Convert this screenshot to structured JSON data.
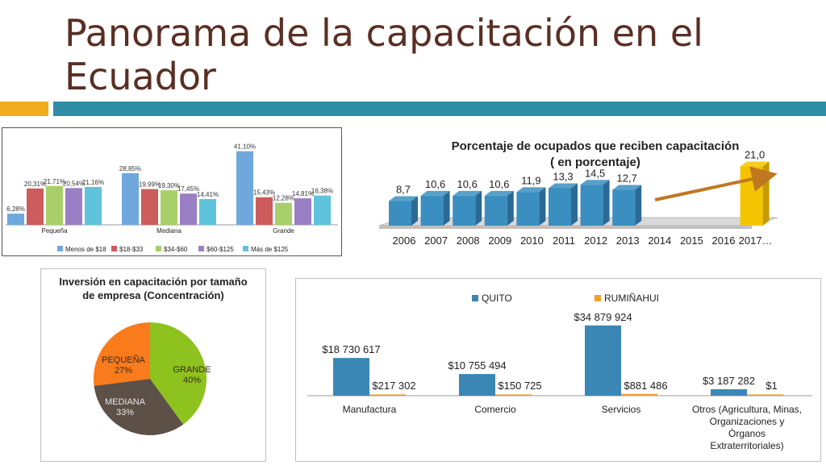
{
  "slide": {
    "title": "Panorama de la capacitación en el Ecuador",
    "accent_orange": "#f0ac1d",
    "accent_teal": "#2e8ca5",
    "title_color": "#5a2f23"
  },
  "chart_data": [
    {
      "type": "bar",
      "categories": [
        "Pequeña",
        "Mediana",
        "Grande"
      ],
      "series": [
        {
          "name": "Menos de $18",
          "values": [
            6.28,
            28.85,
            41.1
          ],
          "labels": [
            "6,28%",
            "28,85%",
            "41,10%"
          ],
          "color": "#6fa8dc"
        },
        {
          "name": "$18-$33",
          "values": [
            20.31,
            19.99,
            15.43
          ],
          "labels": [
            "20,31%",
            "19,99%",
            "15,43%"
          ],
          "color": "#cd5c5c"
        },
        {
          "name": "$34-$60",
          "values": [
            21.71,
            19.3,
            12.28
          ],
          "labels": [
            "21,71%",
            "19,30%",
            "12,28%"
          ],
          "color": "#a9cf6a"
        },
        {
          "name": "$60-$125",
          "values": [
            20.54,
            17.45,
            14.81
          ],
          "labels": [
            "20,54%",
            "17,45%",
            "14,81%"
          ],
          "color": "#9b7fc4"
        },
        {
          "name": "Más de $125",
          "values": [
            21.16,
            14.41,
            16.38
          ],
          "labels": [
            "21,16%",
            "14,41%",
            "16,38%"
          ],
          "color": "#5fc3dc"
        }
      ],
      "ylim": [
        0,
        45
      ],
      "legend": "bottom"
    },
    {
      "type": "bar",
      "title": "Porcentaje de ocupados que reciben capacitación ( en porcentaje)",
      "title_lines": [
        "Porcentaje de ocupados que reciben capacitación",
        "( en porcentaje)"
      ],
      "categories": [
        "2006",
        "2007",
        "2008",
        "2009",
        "2010",
        "2011",
        "2012",
        "2013",
        "2014",
        "2015",
        "2016",
        "2017…"
      ],
      "values": [
        8.7,
        10.6,
        10.6,
        10.6,
        11.9,
        13.3,
        14.5,
        12.7,
        null,
        null,
        null,
        21.0
      ],
      "labels": [
        "8,7",
        "10,6",
        "10,6",
        "10,6",
        "11,9",
        "13,3",
        "14,5",
        "12,7",
        "",
        "",
        "",
        "21,0"
      ],
      "ylim": [
        0,
        25
      ],
      "colors": {
        "default": "#3a8fc0",
        "highlight": "#f5c400",
        "arrow": "#c07820"
      }
    },
    {
      "type": "pie",
      "title": "Inversión en capacitación por tamaño de empresa (Concentración)",
      "title_lines": [
        "Inversión en capacitación por tamaño",
        "de empresa (Concentración)"
      ],
      "slices": [
        {
          "label": "GRANDE",
          "pct_label": "40%",
          "value": 40,
          "color": "#8dc21f"
        },
        {
          "label": "MEDIANA",
          "pct_label": "33%",
          "value": 33,
          "color": "#5c5047"
        },
        {
          "label": "PEQUEÑA",
          "pct_label": "27%",
          "value": 27,
          "color": "#f97b1c"
        }
      ]
    },
    {
      "type": "bar",
      "categories": [
        "Manufactura",
        "Comercio",
        "Servicios",
        "Otros (Agricultura, Minas, Organizaciones y Órganos Extraterritoriales)"
      ],
      "category_lines": [
        [
          "Manufactura"
        ],
        [
          "Comercio"
        ],
        [
          "Servicios"
        ],
        [
          "Otros (Agricultura, Minas,",
          "Organizaciones y",
          "Órganos",
          "Extraterritoriales)"
        ]
      ],
      "series": [
        {
          "name": "QUITO",
          "values": [
            18730617,
            10755494,
            34879924,
            3187282
          ],
          "labels": [
            "$18 730 617",
            "$10 755 494",
            "$34 879 924",
            "$3 187 282"
          ],
          "color": "#3a87b6"
        },
        {
          "name": "RUMIÑAHUI",
          "values": [
            217302,
            150725,
            881486,
            1
          ],
          "labels": [
            "$217 302",
            "$150 725",
            "$881 486",
            "$1"
          ],
          "color": "#f0a030"
        }
      ],
      "ylim": [
        0,
        40000000
      ],
      "legend": "top"
    }
  ]
}
